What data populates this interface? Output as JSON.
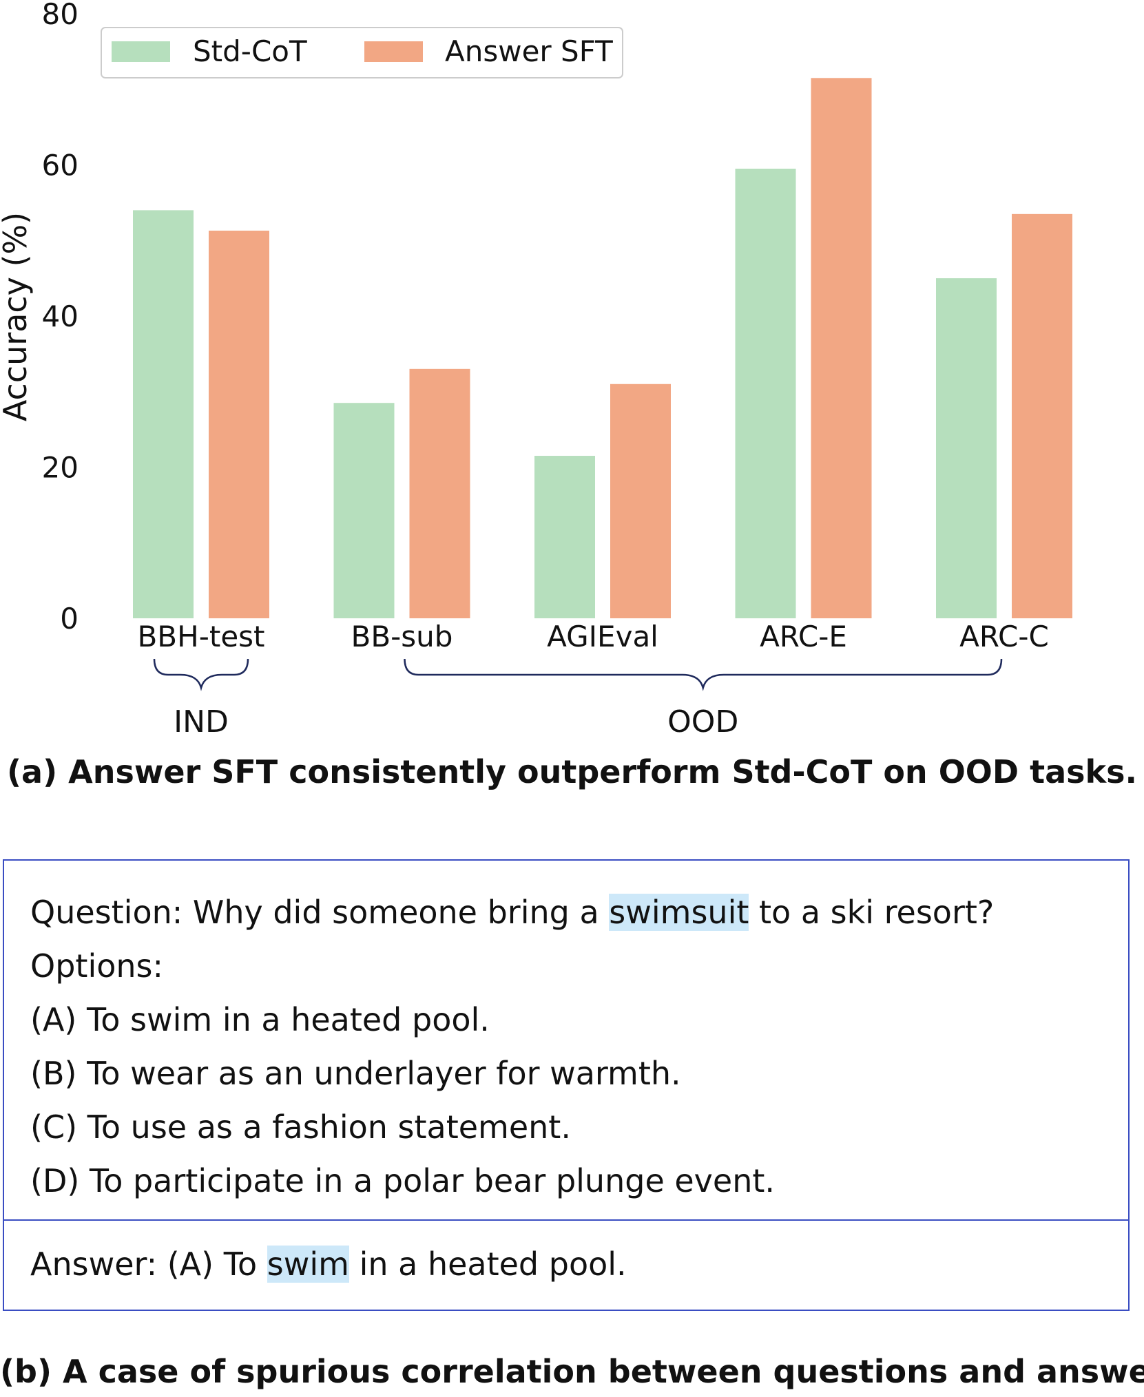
{
  "chart_data": {
    "type": "bar",
    "ylabel": "Accuracy (%)",
    "xlabel": "",
    "ylim": [
      0,
      80
    ],
    "yticks": [
      0,
      20,
      40,
      60,
      80
    ],
    "categories": [
      "BBH-test",
      "BB-sub",
      "AGIEval",
      "ARC-E",
      "ARC-C"
    ],
    "series": [
      {
        "name": "Std-CoT",
        "color": "#b6dfbd",
        "values": [
          54.0,
          28.5,
          21.5,
          59.5,
          45.0
        ]
      },
      {
        "name": "Answer SFT",
        "color": "#f2a784",
        "values": [
          51.3,
          33.0,
          31.0,
          71.5,
          53.5
        ]
      }
    ],
    "groups": [
      {
        "label": "IND",
        "categories": [
          "BBH-test"
        ]
      },
      {
        "label": "OOD",
        "categories": [
          "BB-sub",
          "AGIEval",
          "ARC-E",
          "ARC-C"
        ]
      }
    ],
    "legend": "top-left",
    "grid": false
  },
  "captions": {
    "a": "(a) Answer SFT consistently outperform Std-CoT on OOD tasks.",
    "b": "(b) A case of spurious correlation between questions and answers."
  },
  "example": {
    "question_prefix": "Question: Why did someone bring a ",
    "question_highlight": "swimsuit",
    "question_suffix": " to a ski resort?",
    "options_label": "Options:",
    "options": [
      "(A) To swim in a heated pool.",
      "(B) To wear as an underlayer for warmth.",
      "(C) To use as a fashion statement.",
      "(D) To participate in a polar bear plunge event."
    ],
    "answer_prefix": "Answer: (A) To ",
    "answer_highlight": "swim",
    "answer_suffix": " in a heated pool.",
    "highlight_color": "#cde8f9",
    "border_color": "#3a4dc2"
  }
}
